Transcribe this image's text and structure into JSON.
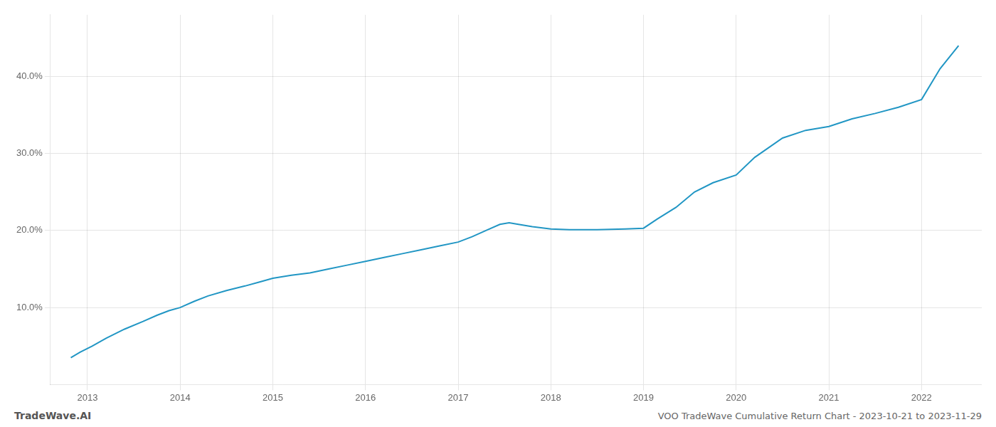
{
  "chart_data": {
    "type": "line",
    "title": "VOO TradeWave Cumulative Return Chart - 2023-10-21 to 2023-11-29",
    "annotations": [
      "TradeWave.AI"
    ],
    "color": "#2196c4",
    "grid": true,
    "x": [
      2012.82,
      2012.92,
      2013.05,
      2013.2,
      2013.4,
      2013.6,
      2013.75,
      2013.88,
      2014.0,
      2014.15,
      2014.3,
      2014.5,
      2014.7,
      2014.85,
      2015.0,
      2015.2,
      2015.4,
      2015.6,
      2015.8,
      2016.0,
      2016.2,
      2016.4,
      2016.6,
      2016.8,
      2017.0,
      2017.15,
      2017.3,
      2017.45,
      2017.55,
      2017.65,
      2017.8,
      2018.0,
      2018.2,
      2018.5,
      2018.8,
      2019.0,
      2019.15,
      2019.35,
      2019.55,
      2019.75,
      2020.0,
      2020.2,
      2020.5,
      2020.75,
      2021.0,
      2021.25,
      2021.5,
      2021.75,
      2022.0,
      2022.2,
      2022.4
    ],
    "values": [
      3.5,
      4.2,
      5.0,
      6.0,
      7.2,
      8.2,
      9.0,
      9.6,
      10.0,
      10.8,
      11.5,
      12.2,
      12.8,
      13.3,
      13.8,
      14.2,
      14.5,
      15.0,
      15.5,
      16.0,
      16.5,
      17.0,
      17.5,
      18.0,
      18.5,
      19.2,
      20.0,
      20.8,
      21.0,
      20.8,
      20.5,
      20.2,
      20.1,
      20.1,
      20.2,
      20.3,
      21.5,
      23.0,
      25.0,
      26.2,
      27.2,
      29.5,
      32.0,
      33.0,
      33.5,
      34.5,
      35.2,
      36.0,
      37.0,
      41.0,
      44.0
    ],
    "xlim": [
      2012.6,
      2022.65
    ],
    "xticks": [
      2013,
      2014,
      2015,
      2016,
      2017,
      2018,
      2019,
      2020,
      2021,
      2022
    ],
    "ylim": [
      0,
      48
    ],
    "yticks": [
      {
        "value": 10.0,
        "label": "10.0%"
      },
      {
        "value": 20.0,
        "label": "20.0%"
      },
      {
        "value": 30.0,
        "label": "30.0%"
      },
      {
        "value": 40.0,
        "label": "40.0%"
      }
    ]
  }
}
